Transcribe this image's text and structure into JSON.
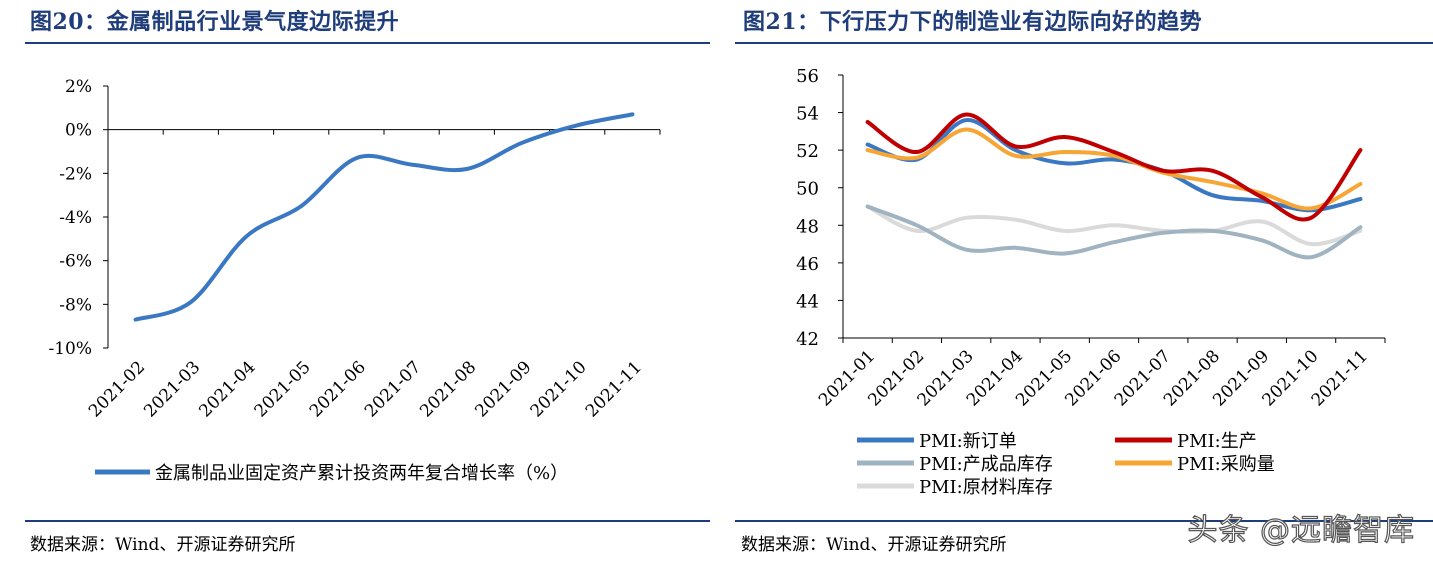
{
  "charts": [
    {
      "title": "图20：金属制品行业景气度边际提升",
      "source": "数据来源：Wind、开源证券研究所"
    },
    {
      "title": "图21：下行压力下的制造业有边际向好的趋势",
      "source": "数据来源：Wind、开源证券研究所"
    }
  ],
  "watermark": "头条 @远瞻智库",
  "chart_data": [
    {
      "type": "line",
      "title": "图20：金属制品行业景气度边际提升",
      "categories": [
        "2021-02",
        "2021-03",
        "2021-04",
        "2021-05",
        "2021-06",
        "2021-07",
        "2021-08",
        "2021-09",
        "2021-10",
        "2021-11"
      ],
      "yticks": [
        "2%",
        "0%",
        "-2%",
        "-4%",
        "-6%",
        "-8%",
        "-10%"
      ],
      "ylim": [
        -10,
        2
      ],
      "series": [
        {
          "name": "金属制品业固定资产累计投资两年复合增长率（%）",
          "color": "#3a78c3",
          "values": [
            -8.7,
            -7.9,
            -4.9,
            -3.5,
            -1.3,
            -1.6,
            -1.8,
            -0.6,
            0.2,
            0.7
          ]
        }
      ],
      "legend": "bottom",
      "grid": false
    },
    {
      "type": "line",
      "title": "图21：下行压力下的制造业有边际向好的趋势",
      "categories": [
        "2021-01",
        "2021-02",
        "2021-03",
        "2021-04",
        "2021-05",
        "2021-06",
        "2021-07",
        "2021-08",
        "2021-09",
        "2021-10",
        "2021-11"
      ],
      "yticks": [
        "56",
        "54",
        "52",
        "50",
        "48",
        "46",
        "44",
        "42"
      ],
      "ylim": [
        42,
        56
      ],
      "series": [
        {
          "name": "PMI:新订单",
          "color": "#3a78c3",
          "values": [
            52.3,
            51.5,
            53.6,
            52.0,
            51.3,
            51.5,
            50.9,
            49.6,
            49.3,
            48.8,
            49.4
          ]
        },
        {
          "name": "PMI:生产",
          "color": "#c00000",
          "values": [
            53.5,
            51.9,
            53.9,
            52.2,
            52.7,
            51.9,
            50.9,
            50.9,
            49.5,
            48.4,
            52.0
          ]
        },
        {
          "name": "PMI:产成品库存",
          "color": "#9fb3c0",
          "values": [
            49.0,
            48.0,
            46.7,
            46.8,
            46.5,
            47.1,
            47.6,
            47.7,
            47.2,
            46.3,
            47.9
          ]
        },
        {
          "name": "PMI:采购量",
          "color": "#f7a535",
          "values": [
            52.0,
            51.6,
            53.1,
            51.7,
            51.9,
            51.7,
            50.8,
            50.3,
            49.7,
            48.9,
            50.2
          ]
        },
        {
          "name": "PMI:原材料库存",
          "color": "#dadada",
          "values": [
            49.0,
            47.7,
            48.4,
            48.3,
            47.7,
            48.0,
            47.7,
            47.7,
            48.2,
            47.0,
            47.7
          ]
        }
      ],
      "legend": "bottom",
      "grid": false
    }
  ]
}
